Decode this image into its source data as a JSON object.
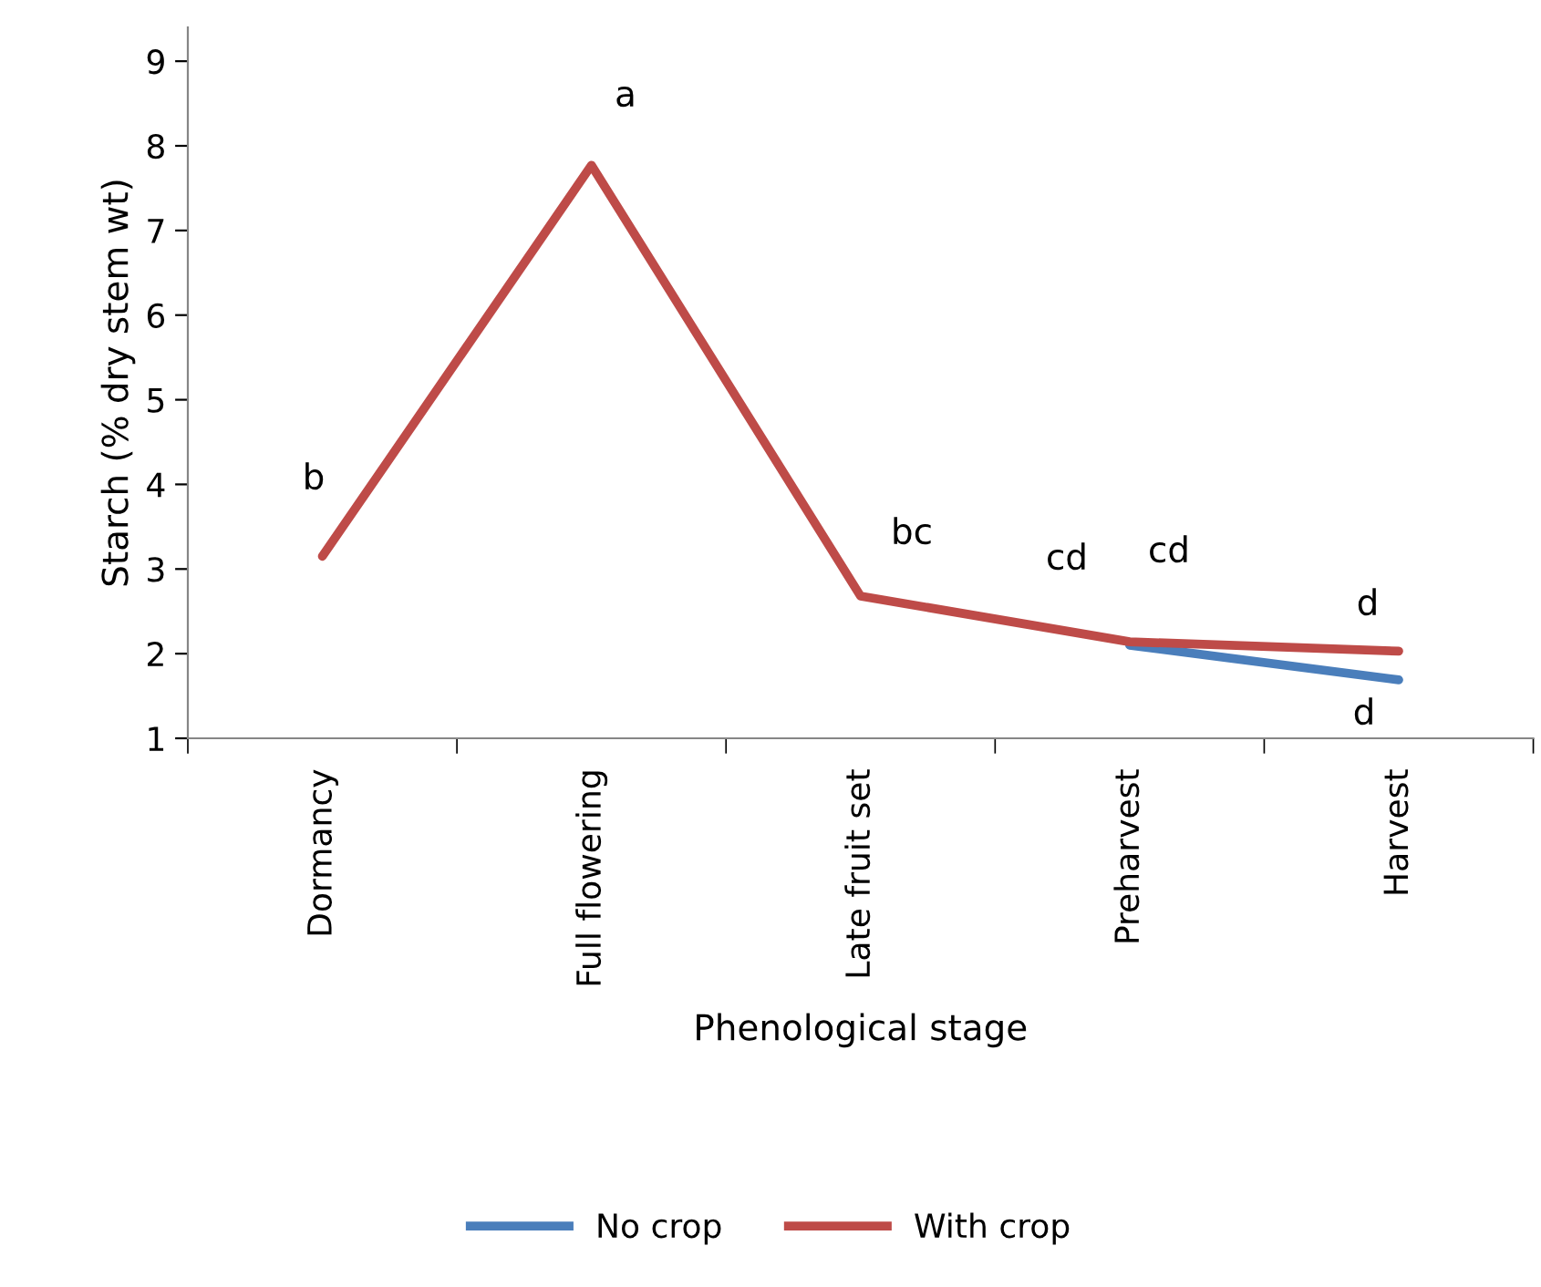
{
  "chart_data": {
    "type": "line",
    "xlabel": "Phenological stage",
    "ylabel": "Starch (% dry stem wt)",
    "categories": [
      "Dormancy",
      "Full flowering",
      "Late fruit set",
      "Preharvest",
      "Harvest"
    ],
    "series": [
      {
        "name": "No crop",
        "color": "#4a7ebb",
        "values": [
          null,
          null,
          null,
          2.1,
          1.69
        ]
      },
      {
        "name": "With crop",
        "color": "#be4b48",
        "values": [
          3.15,
          7.77,
          2.68,
          2.14,
          2.03
        ]
      }
    ],
    "ylim": [
      1,
      9.4
    ],
    "yticks": [
      1,
      2,
      3,
      4,
      5,
      6,
      7,
      8,
      9
    ],
    "grid": false,
    "legend": "bottom",
    "marker": "none",
    "line_style": "solid",
    "annotations": [
      "b",
      "a",
      "bc",
      "cd",
      "cd",
      "d",
      "d"
    ]
  }
}
